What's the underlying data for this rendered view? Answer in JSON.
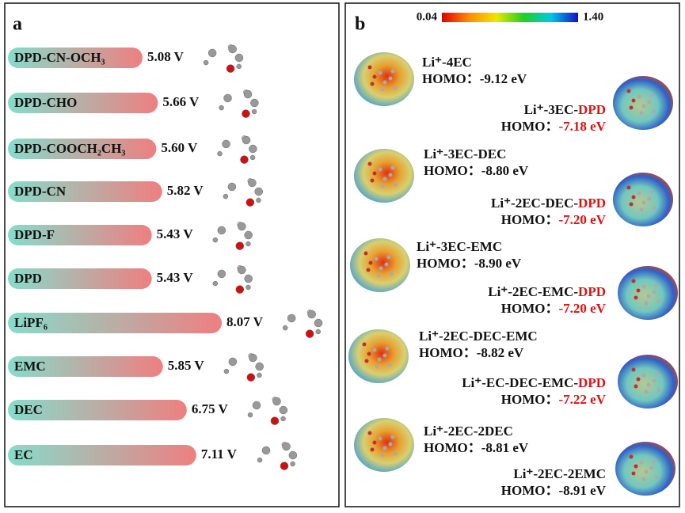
{
  "chart_data": {
    "type": "bar",
    "panel": "a",
    "categories": [
      "DPD-CN-OCH₃",
      "DPD-CHO",
      "DPD-COOCH₂CH₃",
      "DPD-CN",
      "DPD-F",
      "DPD",
      "LiPF₆",
      "EMC",
      "DEC",
      "EC"
    ],
    "values": [
      5.08,
      5.66,
      5.6,
      5.82,
      5.43,
      5.43,
      8.07,
      5.85,
      6.75,
      7.11
    ],
    "value_labels": [
      "5.08 V",
      "5.66 V",
      "5.60 V",
      "5.82 V",
      "5.43 V",
      "5.43 V",
      "8.07 V",
      "5.85 V",
      "6.75 V",
      "7.11 V"
    ],
    "colors": [
      "#86dccb",
      "#ee7f80"
    ]
  },
  "panel_b": {
    "label": "b",
    "colorbar": {
      "min": "0.04",
      "max": "1.40"
    },
    "homo_label": "HOMO：",
    "left": [
      {
        "name": "Li⁺-4EC",
        "homo": "-9.12 eV"
      },
      {
        "name": "Li⁺-3EC-DEC",
        "homo": "-8.80 eV"
      },
      {
        "name": "Li⁺-3EC-EMC",
        "homo": "-8.90 eV"
      },
      {
        "name": "Li⁺-2EC-DEC-EMC",
        "homo": "-8.82 eV"
      },
      {
        "name": "Li⁺-2EC-2DEC",
        "homo": "-8.81 eV"
      }
    ],
    "right": [
      {
        "name": "Li⁺-3EC-",
        "highlight": "DPD",
        "homo": "-7.18 eV"
      },
      {
        "name": "Li⁺-2EC-DEC-",
        "highlight": "DPD",
        "homo": "-7.20 eV"
      },
      {
        "name": "Li⁺-2EC-EMC-",
        "highlight": "DPD",
        "homo": "-7.20 eV"
      },
      {
        "name": "Li⁺-EC-DEC-EMC-",
        "highlight": "DPD",
        "homo": "-7.22 eV"
      },
      {
        "name": "Li⁺-2EC-2EMC",
        "homo": "-8.91 eV"
      }
    ]
  }
}
